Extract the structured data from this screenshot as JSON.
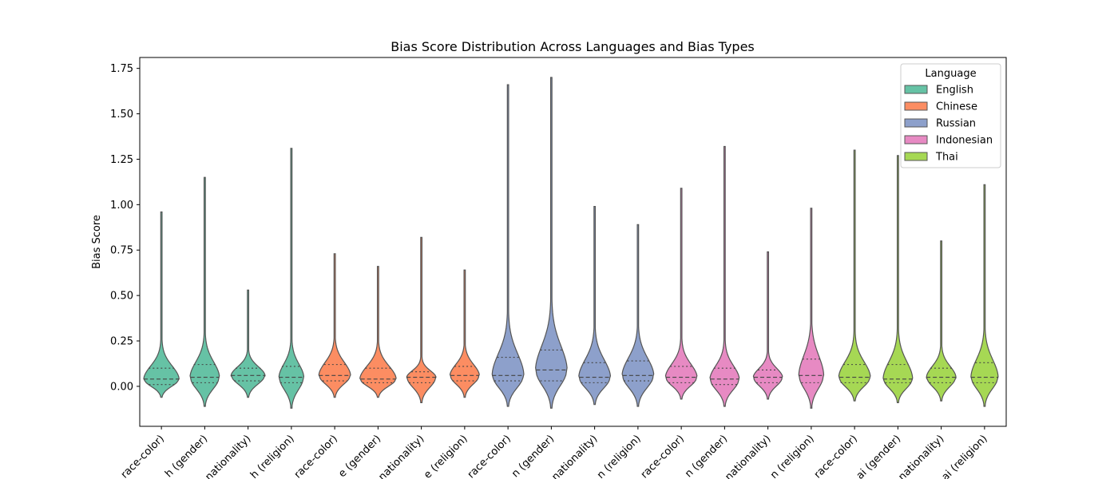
{
  "chart_data": {
    "type": "violin",
    "title": "Bias Score Distribution Across Languages and Bias Types",
    "ylabel": "Bias Score",
    "xlabel": "",
    "ylim": [
      -0.22,
      1.81
    ],
    "yticks": [
      "0.00",
      "0.25",
      "0.50",
      "0.75",
      "1.00",
      "1.25",
      "1.50",
      "1.75"
    ],
    "ytick_values": [
      0,
      0.25,
      0.5,
      0.75,
      1.0,
      1.25,
      1.5,
      1.75
    ],
    "legend": {
      "title": "Language",
      "placement": "top-right",
      "entries": [
        {
          "name": "English",
          "color": "#66c2a5"
        },
        {
          "name": "Chinese",
          "color": "#fc8d62"
        },
        {
          "name": "Russian",
          "color": "#8da0cb"
        },
        {
          "name": "Indonesian",
          "color": "#e78ac3"
        },
        {
          "name": "Thai",
          "color": "#a6d854"
        }
      ]
    },
    "categories": [
      "English (race-color)",
      "English (gender)",
      "English (nationality)",
      "English (religion)",
      "Chinese (race-color)",
      "Chinese (gender)",
      "Chinese (nationality)",
      "Chinese (religion)",
      "Russian (race-color)",
      "Russian (gender)",
      "Russian (nationality)",
      "Russian (religion)",
      "Indonesian (race-color)",
      "Indonesian (gender)",
      "Indonesian (nationality)",
      "Indonesian (religion)",
      "Thai (race-color)",
      "Thai (gender)",
      "Thai (nationality)",
      "Thai (religion)"
    ],
    "tick_labels_visible": [
      "race-color)",
      "h (gender)",
      "nationality)",
      "h (religion)",
      "race-color)",
      "e (gender)",
      "nationality)",
      "e (religion)",
      "race-color)",
      "n (gender)",
      "nationality)",
      "n (religion)",
      "race-color)",
      "n (gender)",
      "nationality)",
      "n (religion)",
      "race-color)",
      "ai (gender)",
      "nationality)",
      "ai (religion)"
    ],
    "series": [
      {
        "language": "English",
        "bias_type": "race-color",
        "min": -0.06,
        "max": 0.96,
        "q1": 0.01,
        "median": 0.04,
        "q3": 0.1,
        "width": 0.78
      },
      {
        "language": "English",
        "bias_type": "gender",
        "min": -0.11,
        "max": 1.15,
        "q1": 0.02,
        "median": 0.05,
        "q3": 0.12,
        "width": 0.65
      },
      {
        "language": "English",
        "bias_type": "nationality",
        "min": -0.06,
        "max": 0.53,
        "q1": 0.03,
        "median": 0.06,
        "q3": 0.1,
        "width": 0.75
      },
      {
        "language": "English",
        "bias_type": "religion",
        "min": -0.12,
        "max": 1.31,
        "q1": 0.02,
        "median": 0.05,
        "q3": 0.11,
        "width": 0.55
      },
      {
        "language": "Chinese",
        "bias_type": "race-color",
        "min": -0.06,
        "max": 0.73,
        "q1": 0.03,
        "median": 0.06,
        "q3": 0.12,
        "width": 0.7
      },
      {
        "language": "Chinese",
        "bias_type": "gender",
        "min": -0.06,
        "max": 0.66,
        "q1": 0.02,
        "median": 0.04,
        "q3": 0.1,
        "width": 0.8
      },
      {
        "language": "Chinese",
        "bias_type": "nationality",
        "min": -0.09,
        "max": 0.82,
        "q1": 0.02,
        "median": 0.05,
        "q3": 0.08,
        "width": 0.65
      },
      {
        "language": "Chinese",
        "bias_type": "religion",
        "min": -0.06,
        "max": 0.64,
        "q1": 0.03,
        "median": 0.06,
        "q3": 0.11,
        "width": 0.65
      },
      {
        "language": "Russian",
        "bias_type": "race-color",
        "min": -0.11,
        "max": 1.66,
        "q1": 0.03,
        "median": 0.06,
        "q3": 0.16,
        "width": 0.7
      },
      {
        "language": "Russian",
        "bias_type": "gender",
        "min": -0.12,
        "max": 1.7,
        "q1": 0.03,
        "median": 0.09,
        "q3": 0.2,
        "width": 0.7
      },
      {
        "language": "Russian",
        "bias_type": "nationality",
        "min": -0.1,
        "max": 0.99,
        "q1": 0.02,
        "median": 0.05,
        "q3": 0.13,
        "width": 0.7
      },
      {
        "language": "Russian",
        "bias_type": "religion",
        "min": -0.11,
        "max": 0.89,
        "q1": 0.03,
        "median": 0.06,
        "q3": 0.14,
        "width": 0.7
      },
      {
        "language": "Indonesian",
        "bias_type": "race-color",
        "min": -0.07,
        "max": 1.09,
        "q1": 0.02,
        "median": 0.05,
        "q3": 0.11,
        "width": 0.7
      },
      {
        "language": "Indonesian",
        "bias_type": "gender",
        "min": -0.11,
        "max": 1.32,
        "q1": 0.01,
        "median": 0.04,
        "q3": 0.1,
        "width": 0.65
      },
      {
        "language": "Indonesian",
        "bias_type": "nationality",
        "min": -0.07,
        "max": 0.74,
        "q1": 0.02,
        "median": 0.05,
        "q3": 0.09,
        "width": 0.65
      },
      {
        "language": "Indonesian",
        "bias_type": "religion",
        "min": -0.12,
        "max": 0.98,
        "q1": 0.02,
        "median": 0.06,
        "q3": 0.15,
        "width": 0.55
      },
      {
        "language": "Thai",
        "bias_type": "race-color",
        "min": -0.08,
        "max": 1.3,
        "q1": 0.02,
        "median": 0.05,
        "q3": 0.12,
        "width": 0.7
      },
      {
        "language": "Thai",
        "bias_type": "gender",
        "min": -0.09,
        "max": 1.27,
        "q1": 0.02,
        "median": 0.04,
        "q3": 0.12,
        "width": 0.65
      },
      {
        "language": "Thai",
        "bias_type": "nationality",
        "min": -0.08,
        "max": 0.8,
        "q1": 0.02,
        "median": 0.05,
        "q3": 0.1,
        "width": 0.65
      },
      {
        "language": "Thai",
        "bias_type": "religion",
        "min": -0.11,
        "max": 1.11,
        "q1": 0.02,
        "median": 0.05,
        "q3": 0.13,
        "width": 0.6
      }
    ]
  }
}
